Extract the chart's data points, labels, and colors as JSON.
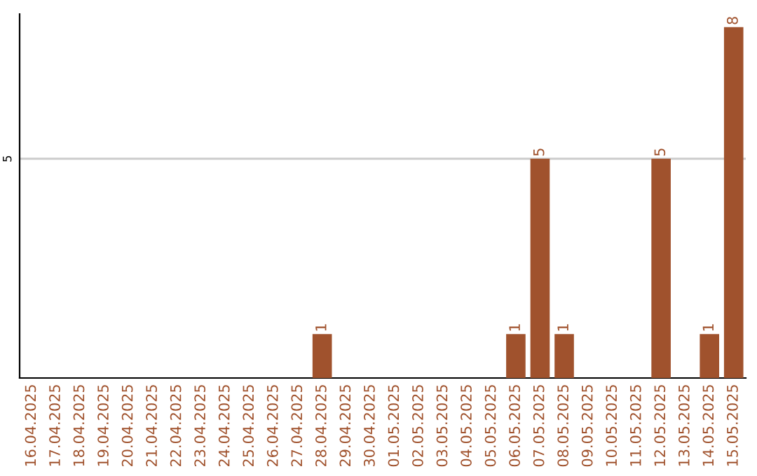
{
  "chart_data": {
    "type": "bar",
    "categories": [
      "16.04.2025",
      "17.04.2025",
      "18.04.2025",
      "19.04.2025",
      "20.04.2025",
      "21.04.2025",
      "22.04.2025",
      "23.04.2025",
      "24.04.2025",
      "25.04.2025",
      "26.04.2025",
      "27.04.2025",
      "28.04.2025",
      "29.04.2025",
      "30.04.2025",
      "01.05.2025",
      "02.05.2025",
      "03.05.2025",
      "04.05.2025",
      "05.05.2025",
      "06.05.2025",
      "07.05.2025",
      "08.05.2025",
      "09.05.2025",
      "10.05.2025",
      "11.05.2025",
      "12.05.2025",
      "13.05.2025",
      "14.05.2025",
      "15.05.2025"
    ],
    "values": [
      null,
      null,
      null,
      null,
      null,
      null,
      null,
      null,
      null,
      null,
      null,
      null,
      1,
      null,
      null,
      null,
      null,
      null,
      null,
      null,
      1,
      5,
      1,
      null,
      null,
      null,
      5,
      null,
      1,
      8
    ],
    "value_labels": [
      null,
      null,
      null,
      null,
      null,
      null,
      null,
      null,
      null,
      null,
      null,
      null,
      "1",
      null,
      null,
      null,
      null,
      null,
      null,
      null,
      "1",
      "5",
      "1",
      null,
      null,
      null,
      "5",
      null,
      "1",
      "8"
    ],
    "color": "#a0522d",
    "ylim": [
      0,
      8.3
    ],
    "yticks": [
      5
    ],
    "grid": "y"
  }
}
